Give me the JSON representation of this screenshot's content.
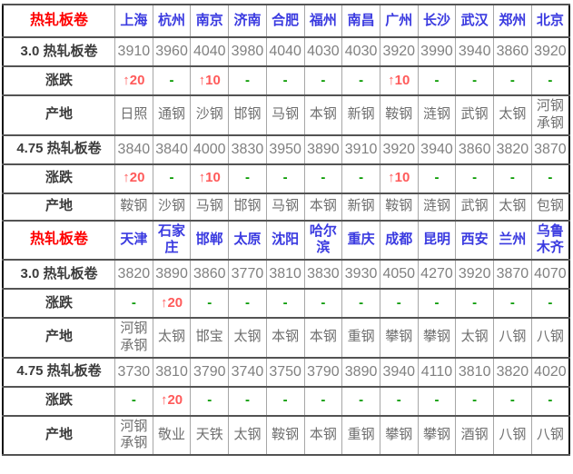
{
  "table_title": "热轧板卷",
  "row_labels": {
    "price_3_0": "3.0 热轧板卷",
    "change": "涨跌",
    "origin": "产地",
    "price_4_75": "4.75 热轧板卷"
  },
  "colors": {
    "section_label": "#fe0000",
    "city": "#3a3ae0",
    "value": "#808080",
    "change_up": "#ff5a5a",
    "change_none": "#089b00"
  },
  "chart_data": {
    "type": "table",
    "title": "热轧板卷价格表",
    "sections": [
      {
        "header_label": "热轧板卷",
        "cities": [
          "上海",
          "杭州",
          "南京",
          "济南",
          "合肥",
          "福州",
          "南昌",
          "广州",
          "长沙",
          "武汉",
          "郑州",
          "北京"
        ],
        "rows": [
          {
            "label": "3.0 热轧板卷",
            "kind": "price",
            "values": [
              "3910",
              "3960",
              "4040",
              "3980",
              "4040",
              "4030",
              "4030",
              "3920",
              "3990",
              "3940",
              "3860",
              "3920"
            ]
          },
          {
            "label": "涨跌",
            "kind": "change",
            "values": [
              "↑20",
              "-",
              "↑10",
              "-",
              "-",
              "-",
              "-",
              "↑10",
              "-",
              "-",
              "-",
              "-"
            ]
          },
          {
            "label": "产地",
            "kind": "origin",
            "values": [
              "日照",
              "通钢",
              "沙钢",
              "邯钢",
              "马钢",
              "本钢",
              "新钢",
              "鞍钢",
              "涟钢",
              "武钢",
              "太钢",
              "河钢承钢"
            ]
          },
          {
            "label": "4.75 热轧板卷",
            "kind": "price",
            "values": [
              "3840",
              "3840",
              "4000",
              "3830",
              "3950",
              "3890",
              "3910",
              "3920",
              "3940",
              "3860",
              "3820",
              "3870"
            ]
          },
          {
            "label": "涨跌",
            "kind": "change",
            "values": [
              "↑20",
              "-",
              "↑10",
              "-",
              "-",
              "-",
              "-",
              "↑10",
              "-",
              "-",
              "-",
              "-"
            ]
          },
          {
            "label": "产地",
            "kind": "origin",
            "values": [
              "鞍钢",
              "沙钢",
              "马钢",
              "邯钢",
              "马钢",
              "本钢",
              "新钢",
              "鞍钢",
              "涟钢",
              "武钢",
              "太钢",
              "包钢"
            ]
          }
        ]
      },
      {
        "header_label": "热轧板卷",
        "cities": [
          "天津",
          "石家庄",
          "邯郸",
          "太原",
          "沈阳",
          "哈尔滨",
          "重庆",
          "成都",
          "昆明",
          "西安",
          "兰州",
          "乌鲁木齐"
        ],
        "rows": [
          {
            "label": "3.0 热轧板卷",
            "kind": "price",
            "values": [
              "3820",
              "3890",
              "3860",
              "3770",
              "3810",
              "3830",
              "3930",
              "4050",
              "4270",
              "3920",
              "3870",
              "4070"
            ]
          },
          {
            "label": "涨跌",
            "kind": "change",
            "values": [
              "-",
              "↑20",
              "-",
              "-",
              "-",
              "-",
              "-",
              "-",
              "-",
              "-",
              "-",
              "-"
            ]
          },
          {
            "label": "产地",
            "kind": "origin",
            "values": [
              "河钢承钢",
              "太钢",
              "邯宝",
              "太钢",
              "本钢",
              "本钢",
              "重钢",
              "攀钢",
              "攀钢",
              "太钢",
              "八钢",
              "八钢"
            ]
          },
          {
            "label": "4.75 热轧板卷",
            "kind": "price",
            "values": [
              "3730",
              "3810",
              "3790",
              "3740",
              "3750",
              "3790",
              "3890",
              "3940",
              "4110",
              "3810",
              "3820",
              "4020"
            ]
          },
          {
            "label": "涨跌",
            "kind": "change",
            "values": [
              "-",
              "↑20",
              "-",
              "-",
              "-",
              "-",
              "-",
              "-",
              "-",
              "-",
              "-",
              "-"
            ]
          },
          {
            "label": "产地",
            "kind": "origin",
            "values": [
              "河钢承钢",
              "敬业",
              "天铁",
              "太钢",
              "鞍钢",
              "本钢",
              "重钢",
              "攀钢",
              "攀钢",
              "酒钢",
              "八钢",
              "八钢"
            ]
          }
        ]
      }
    ]
  }
}
